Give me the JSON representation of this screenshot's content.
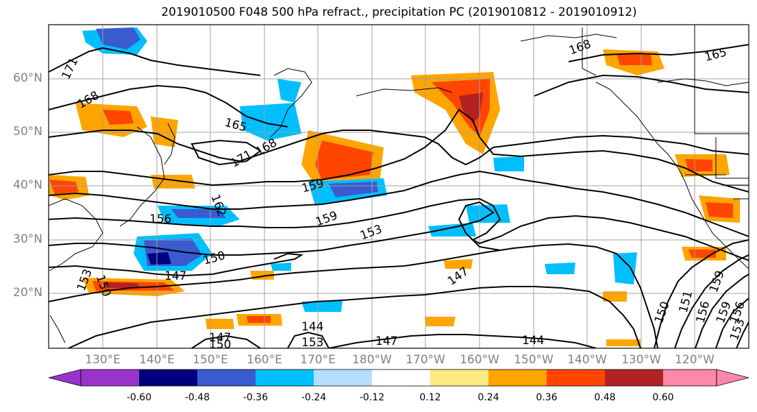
{
  "title": "2019010500 F048 500 hPa refract., precipitation PC (2019010812 - 2019010912)",
  "lat_labels": [
    "60°N",
    "50°N",
    "40°N",
    "30°N",
    "20°N"
  ],
  "lon_labels": [
    "130°E",
    "140°E",
    "150°E",
    "160°E",
    "170°E",
    "180°W",
    "170°W",
    "160°W",
    "150°W",
    "140°W",
    "130°W",
    "120°W"
  ],
  "colorbar": {
    "ticks": [
      "-0.60",
      "-0.48",
      "-0.36",
      "-0.24",
      "-0.12",
      "0.12",
      "0.24",
      "0.36",
      "0.48",
      "0.60"
    ],
    "colors": [
      "#9933cc",
      "#000080",
      "#3a5bd0",
      "#00bfff",
      "#b3e0ff",
      "#ffffff",
      "#ffea80",
      "#ffa500",
      "#ff4500",
      "#b22222",
      "#ff88aa"
    ]
  },
  "contour_labels": [
    "171",
    "168",
    "165",
    "171",
    "168",
    "159",
    "162",
    "156",
    "159",
    "153",
    "150",
    "147",
    "153",
    "150",
    "147",
    "144",
    "147",
    "153",
    "150",
    "147",
    "144",
    "150",
    "151",
    "156",
    "159",
    "159",
    "156",
    "153",
    "165",
    "168"
  ]
}
